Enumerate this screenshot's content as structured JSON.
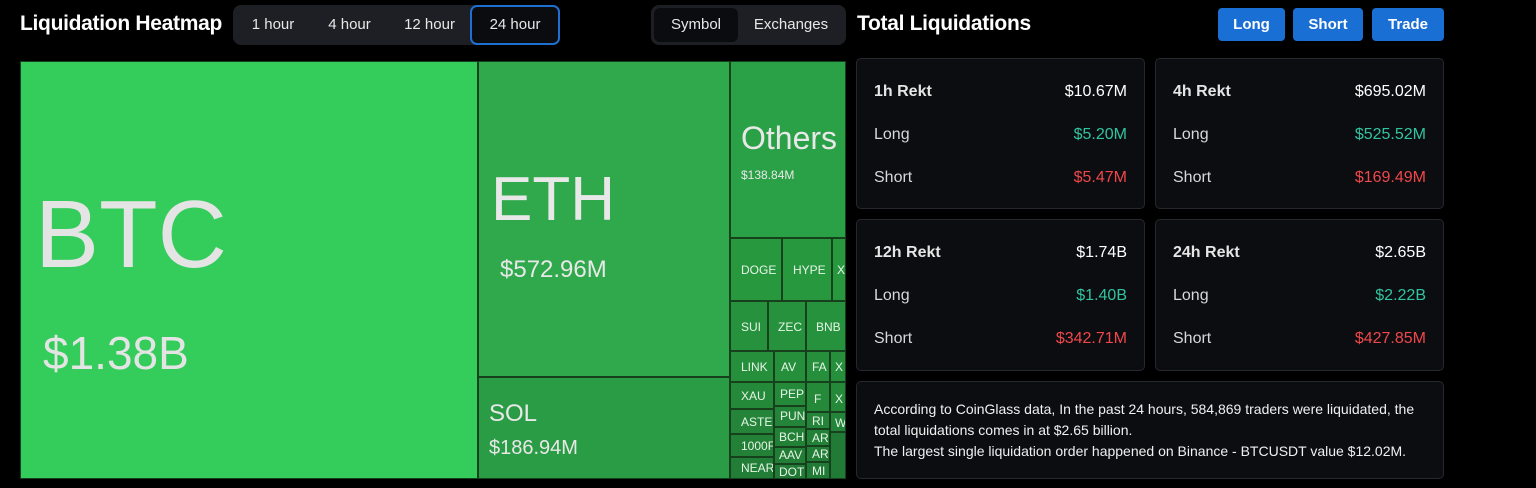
{
  "heatmap": {
    "title": "Liquidation Heatmap",
    "ranges": [
      "1 hour",
      "4 hour",
      "12 hour",
      "24 hour"
    ],
    "active_range": "24 hour",
    "modes": [
      "Symbol",
      "Exchanges"
    ],
    "active_mode": "Symbol",
    "cells": {
      "btc": {
        "symbol": "BTC",
        "value": "$1.38B"
      },
      "eth": {
        "symbol": "ETH",
        "value": "$572.96M"
      },
      "sol": {
        "symbol": "SOL",
        "value": "$186.94M"
      },
      "others": {
        "symbol": "Others",
        "value": "$138.84M"
      }
    },
    "small_symbols": [
      "DOGE",
      "HYPE",
      "X",
      "SUI",
      "ZEC",
      "BNB",
      "LINK",
      "AV",
      "FA",
      "X",
      "XAU",
      "PEP",
      "F",
      "X",
      "ASTE",
      "PUN",
      "RI",
      "W",
      "BCH",
      "AR",
      "1000F",
      "AAV",
      "AR",
      "NEAR",
      "DOT",
      "MI"
    ]
  },
  "panel": {
    "title": "Total Liquidations",
    "buttons": {
      "long": "Long",
      "short": "Short",
      "trade": "Trade"
    },
    "cards": [
      {
        "title": "1h Rekt",
        "total": "$10.67M",
        "long_label": "Long",
        "long": "$5.20M",
        "short_label": "Short",
        "short": "$5.47M"
      },
      {
        "title": "4h Rekt",
        "total": "$695.02M",
        "long_label": "Long",
        "long": "$525.52M",
        "short_label": "Short",
        "short": "$169.49M"
      },
      {
        "title": "12h Rekt",
        "total": "$1.74B",
        "long_label": "Long",
        "long": "$1.40B",
        "short_label": "Short",
        "short": "$342.71M"
      },
      {
        "title": "24h Rekt",
        "total": "$2.65B",
        "long_label": "Long",
        "long": "$2.22B",
        "short_label": "Short",
        "short": "$427.85M"
      }
    ],
    "summary": {
      "line1": "According to CoinGlass data, In the past 24 hours, 584,869 traders were liquidated, the total liquidations comes in at $2.65 billion.",
      "line2": "The largest single liquidation order happened on Binance - BTCUSDT value $12.02M."
    }
  },
  "colors": {
    "accent": "#1a6fd4",
    "long": "#31c4a0",
    "short": "#f0474b",
    "heat_bright": "#34cc5a",
    "heat_mid": "#2fa94c"
  }
}
